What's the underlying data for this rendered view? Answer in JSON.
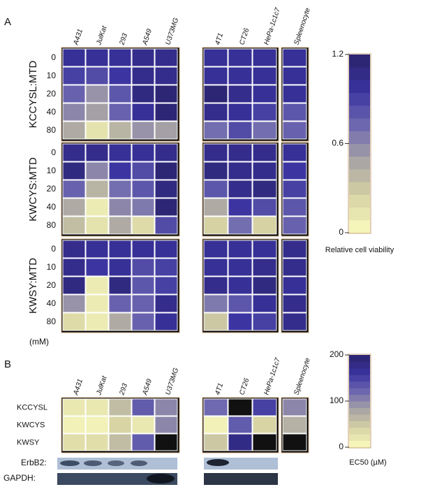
{
  "chart_data": [
    {
      "type": "heatmap",
      "panel": "A",
      "columns": [
        "A431",
        "JulKat",
        "293",
        "A549",
        "U373MG",
        "4T1",
        "CT26",
        "HePa-1c1c7",
        "Spleenocyte"
      ],
      "rows": [
        0,
        10,
        20,
        40,
        80
      ],
      "row_unit": "(mM)",
      "series": [
        {
          "name": "KCCYSL:MTD",
          "values": [
            [
              1.0,
              1.0,
              1.0,
              1.05,
              1.05,
              1.0,
              1.0,
              1.0,
              1.0
            ],
            [
              0.9,
              0.85,
              0.95,
              1.05,
              1.05,
              1.0,
              1.0,
              1.0,
              1.0
            ],
            [
              0.75,
              0.55,
              0.8,
              1.1,
              1.15,
              1.15,
              1.05,
              1.0,
              1.0
            ],
            [
              0.6,
              0.5,
              0.75,
              1.0,
              1.15,
              1.05,
              1.0,
              0.9,
              0.8
            ],
            [
              0.45,
              0.15,
              0.4,
              0.55,
              0.5,
              0.7,
              0.85,
              0.7,
              0.75
            ]
          ]
        },
        {
          "name": "KWCYS:MTD",
          "values": [
            [
              1.05,
              1.05,
              1.0,
              1.0,
              1.05,
              1.05,
              1.05,
              1.05,
              1.0
            ],
            [
              1.1,
              0.6,
              0.95,
              0.85,
              1.15,
              1.1,
              1.05,
              1.05,
              0.95
            ],
            [
              0.75,
              0.4,
              0.7,
              0.8,
              1.1,
              0.8,
              1.05,
              1.1,
              0.9
            ],
            [
              0.45,
              0.1,
              0.6,
              0.65,
              1.15,
              0.45,
              0.95,
              0.85,
              0.8
            ],
            [
              0.35,
              0.15,
              0.45,
              0.2,
              0.85,
              0.25,
              0.7,
              0.25,
              0.75
            ]
          ]
        },
        {
          "name": "KWSY:MTD",
          "values": [
            [
              1.05,
              1.0,
              1.0,
              1.0,
              1.0,
              1.0,
              1.0,
              1.0,
              1.05
            ],
            [
              1.05,
              0.95,
              1.0,
              0.85,
              0.9,
              1.0,
              1.0,
              1.05,
              1.05
            ],
            [
              1.1,
              0.1,
              1.1,
              0.8,
              0.9,
              1.05,
              1.0,
              1.1,
              1.0
            ],
            [
              0.55,
              0.1,
              0.75,
              0.75,
              1.05,
              0.65,
              0.8,
              1.0,
              1.05
            ],
            [
              0.2,
              0.1,
              0.45,
              0.75,
              1.0,
              0.3,
              0.95,
              0.9,
              1.05
            ]
          ]
        }
      ],
      "zlim": [
        0,
        1.2
      ],
      "zticks": [
        0,
        0.6,
        1.2
      ],
      "colorbar_label": "Relative cell viability",
      "colorscale": [
        "#fbfbbd",
        "#d8d4a4",
        "#a9a5a4",
        "#6e69b0",
        "#3a33a0",
        "#29236a"
      ],
      "missing_color": "#111111"
    },
    {
      "type": "heatmap",
      "panel": "B",
      "columns": [
        "A431",
        "JulKat",
        "293",
        "A549",
        "U373MG",
        "4T1",
        "CT26",
        "HePa-1c1c7",
        "Spleenocyte"
      ],
      "rows": [
        "KCCYSL",
        "KWCYS",
        "KWSY"
      ],
      "values": [
        [
          20,
          20,
          60,
          130,
          100,
          120,
          null,
          150,
          100
        ],
        [
          10,
          10,
          40,
          20,
          100,
          10,
          130,
          40,
          70
        ],
        [
          30,
          30,
          60,
          130,
          null,
          50,
          180,
          null,
          null
        ]
      ],
      "zlim": [
        0,
        200
      ],
      "zticks": [
        0,
        100,
        200
      ],
      "colorbar_label": "EC50 (µM)",
      "colorscale": [
        "#fbfbbd",
        "#d8d4a4",
        "#a9a5a4",
        "#6e69b0",
        "#3a33a0",
        "#29236a"
      ],
      "missing_color": "#111111"
    }
  ],
  "blots": {
    "labels": [
      "ErbB2:",
      "GAPDH:"
    ]
  }
}
